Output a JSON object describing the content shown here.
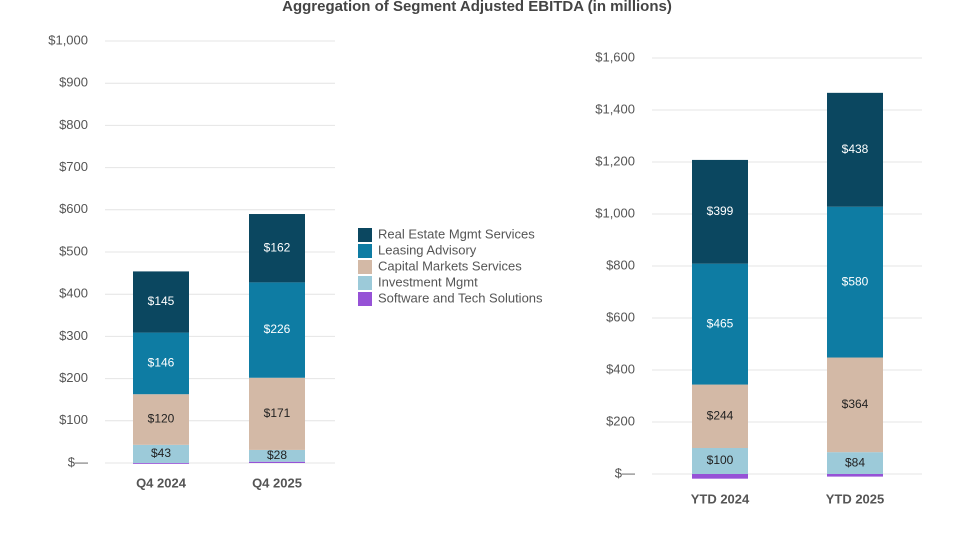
{
  "title": "Aggregation of Segment Adjusted EBITDA (in millions)",
  "chart_data": [
    {
      "type": "bar",
      "stacked": true,
      "categories": [
        "Q4 2024",
        "Q4 2025"
      ],
      "ylim": [
        0,
        1000
      ],
      "yticks": [
        {
          "value": 0,
          "label": "$—"
        },
        {
          "value": 100,
          "label": "$100"
        },
        {
          "value": 200,
          "label": "$200"
        },
        {
          "value": 300,
          "label": "$300"
        },
        {
          "value": 400,
          "label": "$400"
        },
        {
          "value": 500,
          "label": "$500"
        },
        {
          "value": 600,
          "label": "$600"
        },
        {
          "value": 700,
          "label": "$700"
        },
        {
          "value": 800,
          "label": "$800"
        },
        {
          "value": 900,
          "label": "$900"
        },
        {
          "value": 1000,
          "label": "$1,000"
        }
      ],
      "grid": true,
      "series": [
        {
          "name": "Software and Tech Solutions",
          "color": "#9652d6",
          "values": [
            -2,
            3
          ]
        },
        {
          "name": "Investment Mgmt",
          "color": "#9ccad9",
          "values": [
            43,
            28
          ],
          "value_labels": [
            "$43",
            "$28"
          ]
        },
        {
          "name": "Capital Markets Services",
          "color": "#d3b9a6",
          "values": [
            120,
            171
          ],
          "value_labels": [
            "$120",
            "$171"
          ]
        },
        {
          "name": "Leasing Advisory",
          "color": "#0e7ca3",
          "values": [
            146,
            226
          ],
          "value_labels": [
            "$146",
            "$226"
          ]
        },
        {
          "name": "Real Estate Mgmt Services",
          "color": "#0b4760",
          "values": [
            145,
            162
          ],
          "value_labels": [
            "$145",
            "$162"
          ]
        }
      ]
    },
    {
      "type": "bar",
      "stacked": true,
      "categories": [
        "YTD 2024",
        "YTD 2025"
      ],
      "ylim": [
        0,
        1600
      ],
      "yticks": [
        {
          "value": 0,
          "label": "$—"
        },
        {
          "value": 200,
          "label": "$200"
        },
        {
          "value": 400,
          "label": "$400"
        },
        {
          "value": 600,
          "label": "$600"
        },
        {
          "value": 800,
          "label": "$800"
        },
        {
          "value": 1000,
          "label": "$1,000"
        },
        {
          "value": 1200,
          "label": "$1,200"
        },
        {
          "value": 1400,
          "label": "$1,400"
        },
        {
          "value": 1600,
          "label": "$1,600"
        }
      ],
      "grid": true,
      "series": [
        {
          "color": "#9652d6",
          "values": [
            -18,
            -10
          ]
        },
        {
          "color": "#9ccad9",
          "values": [
            100,
            84
          ],
          "value_labels": [
            "$100",
            "$84"
          ]
        },
        {
          "color": "#d3b9a6",
          "values": [
            244,
            364
          ],
          "value_labels": [
            "$244",
            "$364"
          ]
        },
        {
          "color": "#0e7ca3",
          "values": [
            465,
            580
          ],
          "value_labels": [
            "$465",
            "$580"
          ]
        },
        {
          "color": "#0b4760",
          "values": [
            399,
            438
          ],
          "value_labels": [
            "$399",
            "$438"
          ]
        }
      ]
    }
  ]
}
